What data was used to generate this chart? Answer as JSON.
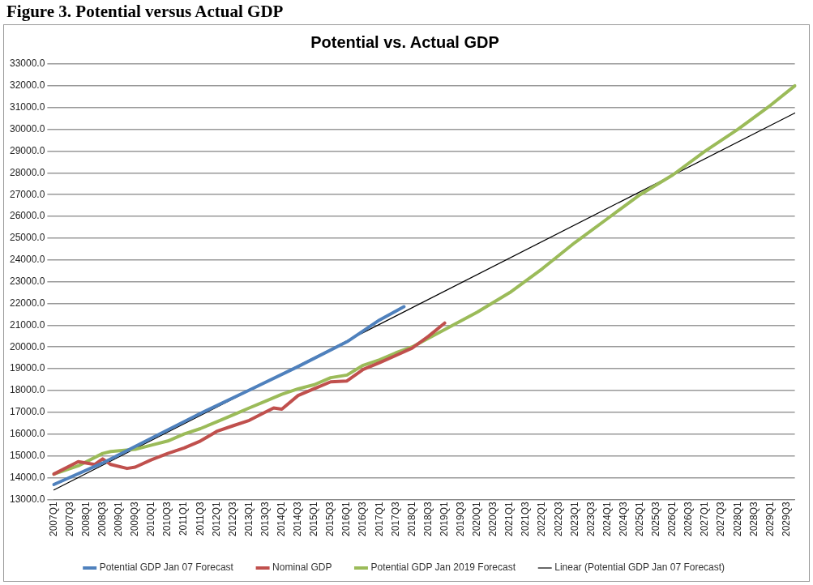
{
  "chart_data": {
    "type": "line",
    "title": "Figure 3. Potential versus Actual GDP",
    "subtitle": "Potential vs. Actual GDP",
    "categories": [
      "2007Q1",
      null,
      "2007Q3",
      null,
      "2008Q1",
      null,
      "2008Q3",
      null,
      "2009Q1",
      null,
      "2009Q3",
      null,
      "2010Q1",
      null,
      "2010Q3",
      null,
      "2011Q1",
      null,
      "2011Q3",
      null,
      "2012Q1",
      null,
      "2012Q3",
      null,
      "2013Q1",
      null,
      "2013Q3",
      null,
      "2014Q1",
      null,
      "2014Q3",
      null,
      "2015Q1",
      null,
      "2015Q3",
      null,
      "2016Q1",
      null,
      "2016Q3",
      null,
      "2017Q1",
      null,
      "2017Q3",
      null,
      "2018Q1",
      null,
      "2018Q3",
      null,
      "2019Q1",
      null,
      "2019Q3",
      null,
      "2020Q1",
      null,
      "2020Q3",
      null,
      "2021Q1",
      null,
      "2021Q3",
      null,
      "2022Q1",
      null,
      "2022Q3",
      null,
      "2023Q1",
      null,
      "2023Q3",
      null,
      "2024Q1",
      null,
      "2024Q3",
      null,
      "2025Q1",
      null,
      "2025Q3",
      null,
      "2026Q1",
      null,
      "2026Q3",
      null,
      "2027Q1",
      null,
      "2027Q3",
      null,
      "2028Q1",
      null,
      "2028Q3",
      null,
      "2029Q1",
      null,
      "2029Q3",
      null
    ],
    "series": [
      {
        "name": "Potential GDP Jan 07 Forecast",
        "color": "#4f81bd",
        "values": [
          13680,
          null,
          null,
          null,
          null,
          null,
          14670,
          null,
          null,
          null,
          null,
          null,
          15810,
          null,
          null,
          null,
          null,
          null,
          16950,
          null,
          null,
          null,
          null,
          null,
          18020,
          null,
          null,
          null,
          null,
          null,
          19100,
          null,
          null,
          null,
          null,
          null,
          20240,
          null,
          null,
          null,
          21240,
          null,
          null,
          21850,
          null,
          null,
          null,
          null,
          null,
          null,
          null,
          null,
          null,
          null,
          null,
          null,
          null,
          null,
          null,
          null,
          null,
          null,
          null,
          null,
          null,
          null,
          null,
          null,
          null,
          null,
          null,
          null,
          null,
          null,
          null,
          null,
          null,
          null,
          null,
          null,
          null,
          null,
          null,
          null,
          null,
          null,
          null,
          null,
          null,
          null,
          null,
          null
        ]
      },
      {
        "name": "Nominal GDP",
        "color": "#c0504d",
        "values": [
          14160,
          null,
          null,
          14730,
          null,
          14600,
          14860,
          14600,
          null,
          14420,
          14480,
          null,
          14820,
          null,
          15110,
          null,
          15360,
          null,
          15680,
          null,
          16120,
          null,
          16380,
          null,
          16630,
          null,
          17010,
          17200,
          17140,
          null,
          17770,
          null,
          18090,
          null,
          18400,
          null,
          18440,
          null,
          18970,
          null,
          19280,
          null,
          19610,
          null,
          19950,
          null,
          20490,
          null,
          21100,
          null,
          null,
          null,
          null,
          null,
          null,
          null,
          null,
          null,
          null,
          null,
          null,
          null,
          null,
          null,
          null,
          null,
          null,
          null,
          null,
          null,
          null,
          null,
          null,
          null,
          null,
          null,
          null,
          null,
          null,
          null,
          null,
          null,
          null,
          null,
          null,
          null,
          null,
          null,
          null,
          null,
          null,
          null
        ]
      },
      {
        "name": "Potential GDP Jan 2019 Forecast",
        "color": "#9bbb59",
        "values": [
          14160,
          null,
          null,
          14540,
          null,
          null,
          15110,
          15200,
          null,
          null,
          15300,
          null,
          15490,
          null,
          15680,
          null,
          16000,
          null,
          16250,
          null,
          16560,
          null,
          16880,
          null,
          17200,
          null,
          17510,
          null,
          17830,
          null,
          18080,
          null,
          18270,
          null,
          18590,
          null,
          18710,
          null,
          19160,
          null,
          19410,
          null,
          19730,
          null,
          20000,
          null,
          null,
          null,
          20800,
          null,
          null,
          null,
          21600,
          null,
          null,
          null,
          22500,
          null,
          null,
          null,
          23600,
          null,
          null,
          null,
          24800,
          null,
          null,
          null,
          25900,
          null,
          null,
          null,
          27000,
          null,
          null,
          null,
          27900,
          null,
          null,
          null,
          29000,
          null,
          null,
          null,
          30000,
          null,
          null,
          null,
          31100,
          null,
          null,
          32000
        ]
      },
      {
        "name": "Linear (Potential GDP Jan 07 Forecast)",
        "color": "#000000",
        "values": [
          13430,
          null,
          null,
          null,
          null,
          null,
          null,
          null,
          null,
          null,
          null,
          null,
          null,
          null,
          null,
          null,
          null,
          null,
          null,
          null,
          null,
          null,
          null,
          null,
          null,
          null,
          null,
          null,
          null,
          null,
          null,
          null,
          null,
          null,
          null,
          null,
          null,
          null,
          null,
          null,
          null,
          null,
          null,
          null,
          null,
          null,
          null,
          null,
          null,
          null,
          null,
          null,
          null,
          null,
          null,
          null,
          null,
          null,
          null,
          null,
          null,
          null,
          null,
          null,
          null,
          null,
          null,
          null,
          null,
          null,
          null,
          null,
          null,
          null,
          null,
          null,
          null,
          null,
          null,
          null,
          null,
          null,
          null,
          null,
          null,
          null,
          null,
          null,
          null,
          null,
          null,
          30750
        ]
      }
    ],
    "ylim": [
      13000,
      33000
    ],
    "yticks": [
      {
        "value": 13000,
        "label": "13000.0"
      },
      {
        "value": 14000,
        "label": "14000.0"
      },
      {
        "value": 15000,
        "label": "15000.0"
      },
      {
        "value": 16000,
        "label": "16000.0"
      },
      {
        "value": 17000,
        "label": "17000.0"
      },
      {
        "value": 18000,
        "label": "18000.0"
      },
      {
        "value": 19000,
        "label": "19000.0"
      },
      {
        "value": 20000,
        "label": "20000.0"
      },
      {
        "value": 21000,
        "label": "21000.0"
      },
      {
        "value": 22000,
        "label": "22000.0"
      },
      {
        "value": 23000,
        "label": "23000.0"
      },
      {
        "value": 24000,
        "label": "24000.0"
      },
      {
        "value": 25000,
        "label": "25000.0"
      },
      {
        "value": 26000,
        "label": "26000.0"
      },
      {
        "value": 27000,
        "label": "27000.0"
      },
      {
        "value": 28000,
        "label": "28000.0"
      },
      {
        "value": 29000,
        "label": "29000.0"
      },
      {
        "value": 30000,
        "label": "30000.0"
      },
      {
        "value": 31000,
        "label": "31000.0"
      },
      {
        "value": 32000,
        "label": "32000.0"
      },
      {
        "value": 33000,
        "label": "33000.0"
      }
    ],
    "grid": "y",
    "legend": "bottom",
    "marker": "none",
    "line_style": "solid"
  }
}
